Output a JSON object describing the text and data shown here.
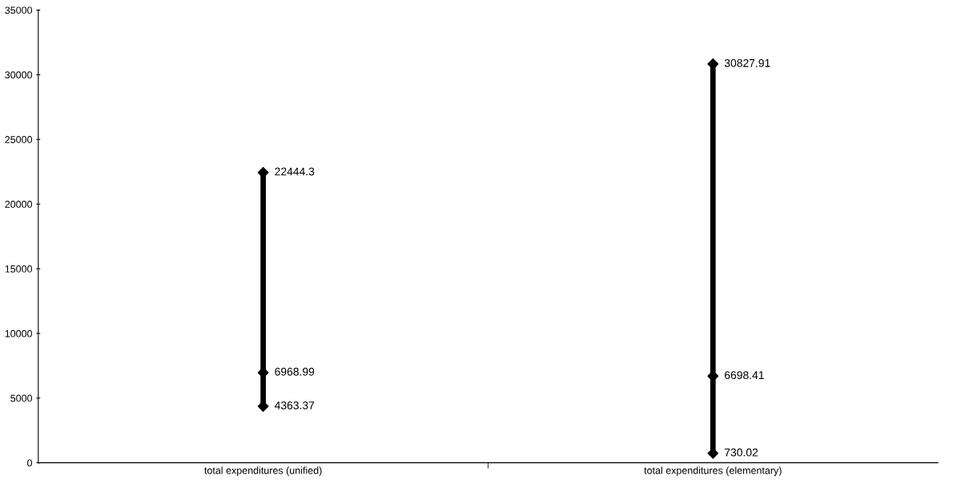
{
  "chart_data": {
    "type": "bar",
    "categories": [
      "total expenditures (unified)",
      "total expenditures (elementary)"
    ],
    "ylim": [
      0,
      35000
    ],
    "yticks": [
      0,
      5000,
      10000,
      15000,
      20000,
      25000,
      30000,
      35000
    ],
    "grid": false,
    "marker": "diamond",
    "series": [
      {
        "color": "#000000",
        "base": [
          4363.37,
          730.02
        ],
        "values": [
          18080.93,
          30097.89
        ]
      },
      {
        "type": "scatter",
        "color": "#000000",
        "values": [
          22444.3,
          30827.91
        ],
        "data_labels": true
      },
      {
        "type": "scatter",
        "color": "#000000",
        "values": [
          6968.99,
          6698.41
        ],
        "data_labels": true
      },
      {
        "type": "scatter",
        "color": "#000000",
        "values": [
          4363.37,
          730.02
        ],
        "data_labels": true
      }
    ]
  }
}
